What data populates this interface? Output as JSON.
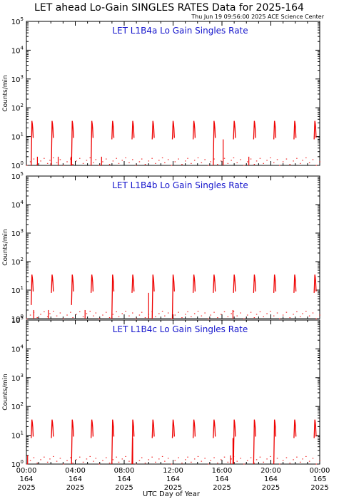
{
  "title": "LET ahead Lo-Gain SINGLES RATES Data for 2025-164",
  "stamp": "Thu Jun 19 09:56:00 2025 ACE Science Center",
  "xlabel": "UTC Day of Year",
  "colors": {
    "data": "#ee0000",
    "panel_title": "#1515cc",
    "axes": "#000000"
  },
  "x_ticks": [
    {
      "hours": 0,
      "time": "00:00",
      "doy": "164",
      "year": "2025"
    },
    {
      "hours": 4,
      "time": "04:00",
      "doy": "164",
      "year": "2025"
    },
    {
      "hours": 8,
      "time": "08:00",
      "doy": "164",
      "year": "2025"
    },
    {
      "hours": 12,
      "time": "12:00",
      "doy": "164",
      "year": "2025"
    },
    {
      "hours": 16,
      "time": "16:00",
      "doy": "164",
      "year": "2025"
    },
    {
      "hours": 20,
      "time": "20:00",
      "doy": "164",
      "year": "2025"
    },
    {
      "hours": 24,
      "time": "00:00",
      "doy": "165",
      "year": "2025"
    }
  ],
  "chart_data": [
    {
      "type": "line",
      "title": "LET L1B4a Lo Gain Singles Rate",
      "ylabel": "Counts/min",
      "yscale": "log",
      "ylim": [
        1,
        100000
      ],
      "xlim": [
        0,
        24
      ],
      "y_ticks": [
        {
          "base": "10",
          "exp": "0",
          "value": 1
        },
        {
          "base": "10",
          "exp": "1",
          "value": 10
        },
        {
          "base": "10",
          "exp": "2",
          "value": 100
        },
        {
          "base": "10",
          "exp": "3",
          "value": 1000
        },
        {
          "base": "10",
          "exp": "4",
          "value": 10000
        },
        {
          "base": "10",
          "exp": "5",
          "value": 100000
        }
      ],
      "bursts": [
        {
          "x": 0.45,
          "peak": 35,
          "low": 1
        },
        {
          "x": 2.1,
          "peak": 35,
          "low": 1
        },
        {
          "x": 3.75,
          "peak": 35,
          "low": 1
        },
        {
          "x": 5.35,
          "peak": 35,
          "low": 1
        },
        {
          "x": 7.05,
          "peak": 35,
          "low": 8
        },
        {
          "x": 8.7,
          "peak": 35,
          "low": 8
        },
        {
          "x": 10.35,
          "peak": 35,
          "low": 8
        },
        {
          "x": 12.0,
          "peak": 35,
          "low": 8
        },
        {
          "x": 13.7,
          "peak": 35,
          "low": 8
        },
        {
          "x": 15.35,
          "peak": 35,
          "low": 1
        },
        {
          "x": 17.0,
          "peak": 35,
          "low": 8
        },
        {
          "x": 18.65,
          "peak": 35,
          "low": 8
        },
        {
          "x": 20.3,
          "peak": 35,
          "low": 8
        },
        {
          "x": 21.95,
          "peak": 35,
          "low": 8
        },
        {
          "x": 23.6,
          "peak": 35,
          "low": 8
        }
      ],
      "spikes": [
        {
          "x": 0.9,
          "peak": 2
        },
        {
          "x": 2.6,
          "peak": 2
        },
        {
          "x": 3.65,
          "peak": 2
        },
        {
          "x": 6.15,
          "peak": 2
        },
        {
          "x": 16.1,
          "peak": 8
        },
        {
          "x": 18.2,
          "peak": 2
        }
      ]
    },
    {
      "type": "line",
      "title": "LET L1B4b Lo Gain Singles Rate",
      "ylabel": "Counts/min",
      "yscale": "log",
      "ylim": [
        1,
        100000
      ],
      "xlim": [
        0,
        24
      ],
      "y_ticks": [
        {
          "base": "10",
          "exp": "0",
          "value": 1
        },
        {
          "base": "10",
          "exp": "1",
          "value": 10
        },
        {
          "base": "10",
          "exp": "2",
          "value": 100
        },
        {
          "base": "10",
          "exp": "3",
          "value": 1000
        },
        {
          "base": "10",
          "exp": "4",
          "value": 10000
        },
        {
          "base": "10",
          "exp": "5",
          "value": 100000
        }
      ],
      "bursts": [
        {
          "x": 0.45,
          "peak": 35,
          "low": 3
        },
        {
          "x": 2.1,
          "peak": 35,
          "low": 8
        },
        {
          "x": 3.75,
          "peak": 35,
          "low": 3
        },
        {
          "x": 5.35,
          "peak": 35,
          "low": 8
        },
        {
          "x": 7.05,
          "peak": 35,
          "low": 1
        },
        {
          "x": 8.7,
          "peak": 35,
          "low": 8
        },
        {
          "x": 10.35,
          "peak": 35,
          "low": 1
        },
        {
          "x": 12.0,
          "peak": 35,
          "low": 1
        },
        {
          "x": 13.7,
          "peak": 35,
          "low": 8
        },
        {
          "x": 15.35,
          "peak": 35,
          "low": 8
        },
        {
          "x": 17.0,
          "peak": 35,
          "low": 8
        },
        {
          "x": 18.65,
          "peak": 35,
          "low": 8
        },
        {
          "x": 20.3,
          "peak": 35,
          "low": 8
        },
        {
          "x": 21.95,
          "peak": 35,
          "low": 8
        },
        {
          "x": 23.6,
          "peak": 35,
          "low": 8
        }
      ],
      "spikes": [
        {
          "x": 0.6,
          "peak": 2
        },
        {
          "x": 1.8,
          "peak": 2
        },
        {
          "x": 4.8,
          "peak": 2
        },
        {
          "x": 10.0,
          "peak": 8
        },
        {
          "x": 16.9,
          "peak": 2
        }
      ]
    },
    {
      "type": "line",
      "title": "LET L1B4c Lo Gain Singles Rate",
      "ylabel": "Counts/min",
      "yscale": "log",
      "ylim": [
        1,
        100000
      ],
      "xlim": [
        0,
        24
      ],
      "y_ticks": [
        {
          "base": "10",
          "exp": "0",
          "value": 1
        },
        {
          "base": "10",
          "exp": "1",
          "value": 10
        },
        {
          "base": "10",
          "exp": "2",
          "value": 100
        },
        {
          "base": "10",
          "exp": "3",
          "value": 1000
        },
        {
          "base": "10",
          "exp": "4",
          "value": 10000
        },
        {
          "base": "10",
          "exp": "5",
          "value": 100000
        }
      ],
      "bursts": [
        {
          "x": 0.45,
          "peak": 35,
          "low": 8
        },
        {
          "x": 2.1,
          "peak": 35,
          "low": 8
        },
        {
          "x": 3.75,
          "peak": 35,
          "low": 1
        },
        {
          "x": 5.35,
          "peak": 35,
          "low": 8
        },
        {
          "x": 7.05,
          "peak": 35,
          "low": 1
        },
        {
          "x": 8.7,
          "peak": 35,
          "low": 1
        },
        {
          "x": 10.35,
          "peak": 35,
          "low": 8
        },
        {
          "x": 12.0,
          "peak": 35,
          "low": 8
        },
        {
          "x": 13.7,
          "peak": 35,
          "low": 8
        },
        {
          "x": 15.35,
          "peak": 35,
          "low": 8
        },
        {
          "x": 17.0,
          "peak": 35,
          "low": 1
        },
        {
          "x": 18.65,
          "peak": 35,
          "low": 1
        },
        {
          "x": 20.3,
          "peak": 35,
          "low": 1
        },
        {
          "x": 21.95,
          "peak": 35,
          "low": 8
        },
        {
          "x": 23.6,
          "peak": 35,
          "low": 8
        }
      ],
      "spikes": [
        {
          "x": 0.1,
          "peak": 2
        },
        {
          "x": 8.7,
          "peak": 8
        },
        {
          "x": 16.7,
          "peak": 2
        },
        {
          "x": 16.9,
          "peak": 8
        }
      ]
    }
  ]
}
